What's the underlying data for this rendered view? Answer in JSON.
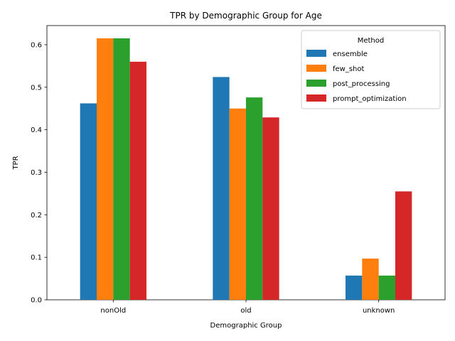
{
  "chart_data": {
    "type": "bar",
    "title": "TPR by Demographic Group for Age",
    "xlabel": "Demographic Group",
    "ylabel": "TPR",
    "categories": [
      "nonOld",
      "old",
      "unknown"
    ],
    "ylim": [
      0,
      0.645
    ],
    "yticks": [
      0.0,
      0.1,
      0.2,
      0.3,
      0.4,
      0.5,
      0.6
    ],
    "ytick_labels": [
      "0.0",
      "0.1",
      "0.2",
      "0.3",
      "0.4",
      "0.5",
      "0.6"
    ],
    "grid": false,
    "legend": {
      "title": "Method",
      "position": "top-right"
    },
    "series": [
      {
        "name": "ensemble",
        "color": "#1f77b4",
        "values": [
          0.462,
          0.524,
          0.057
        ]
      },
      {
        "name": "few_shot",
        "color": "#ff7f0e",
        "values": [
          0.615,
          0.45,
          0.097
        ]
      },
      {
        "name": "post_processing",
        "color": "#2ca02c",
        "values": [
          0.615,
          0.476,
          0.057
        ]
      },
      {
        "name": "prompt_optimization",
        "color": "#d62728",
        "values": [
          0.56,
          0.429,
          0.255
        ]
      }
    ]
  }
}
